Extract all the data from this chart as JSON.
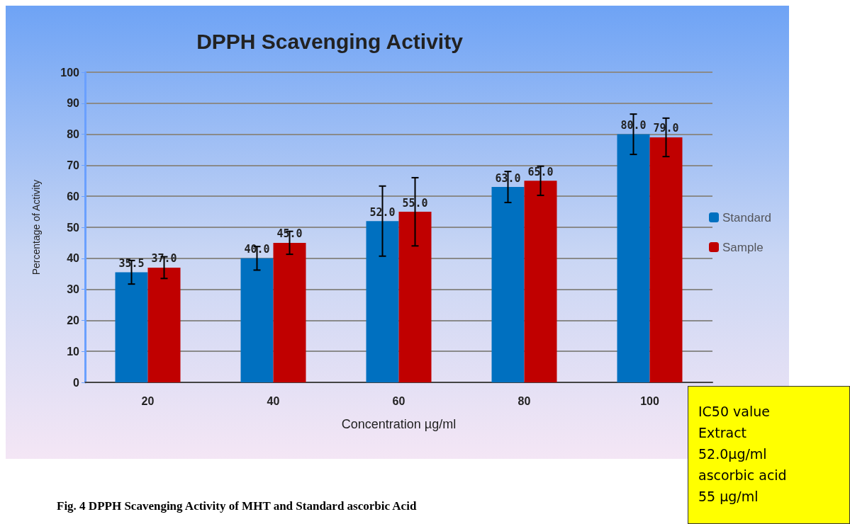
{
  "chart_data": {
    "type": "bar",
    "title": "DPPH Scavenging Activity",
    "xlabel": "Concentration µg/ml",
    "ylabel": "Percentage of Activity",
    "categories": [
      "20",
      "40",
      "60",
      "80",
      "100"
    ],
    "series": [
      {
        "name": "Standard",
        "color": "#0070c0",
        "values": [
          35.5,
          40.0,
          52.0,
          63.0,
          80.0
        ],
        "value_labels": [
          "35.5",
          "40.0",
          "52.0",
          "63.0",
          "80.0"
        ],
        "errors": [
          3.8,
          3.8,
          11.3,
          5,
          6.5
        ]
      },
      {
        "name": "Sample",
        "color": "#c00000",
        "values": [
          37.0,
          45.0,
          55.0,
          65.0,
          79.0
        ],
        "value_labels": [
          "37.0",
          "45.0",
          "55.0",
          "65.0",
          "79.0"
        ],
        "errors": [
          3.5,
          3.7,
          11,
          4.7,
          6.2
        ]
      }
    ],
    "ylim": [
      0,
      100
    ],
    "yticks": [
      0,
      10,
      20,
      30,
      40,
      50,
      60,
      70,
      80,
      90,
      100
    ],
    "grid": "y",
    "legend": "right",
    "annotations": [
      "Fig. 4 DPPH Scavenging Activity of MHT and Standard ascorbic Acid",
      "IC50 value\nExtract\n52.0µg/ml\nascorbic acid\n55 µg/ml"
    ]
  }
}
